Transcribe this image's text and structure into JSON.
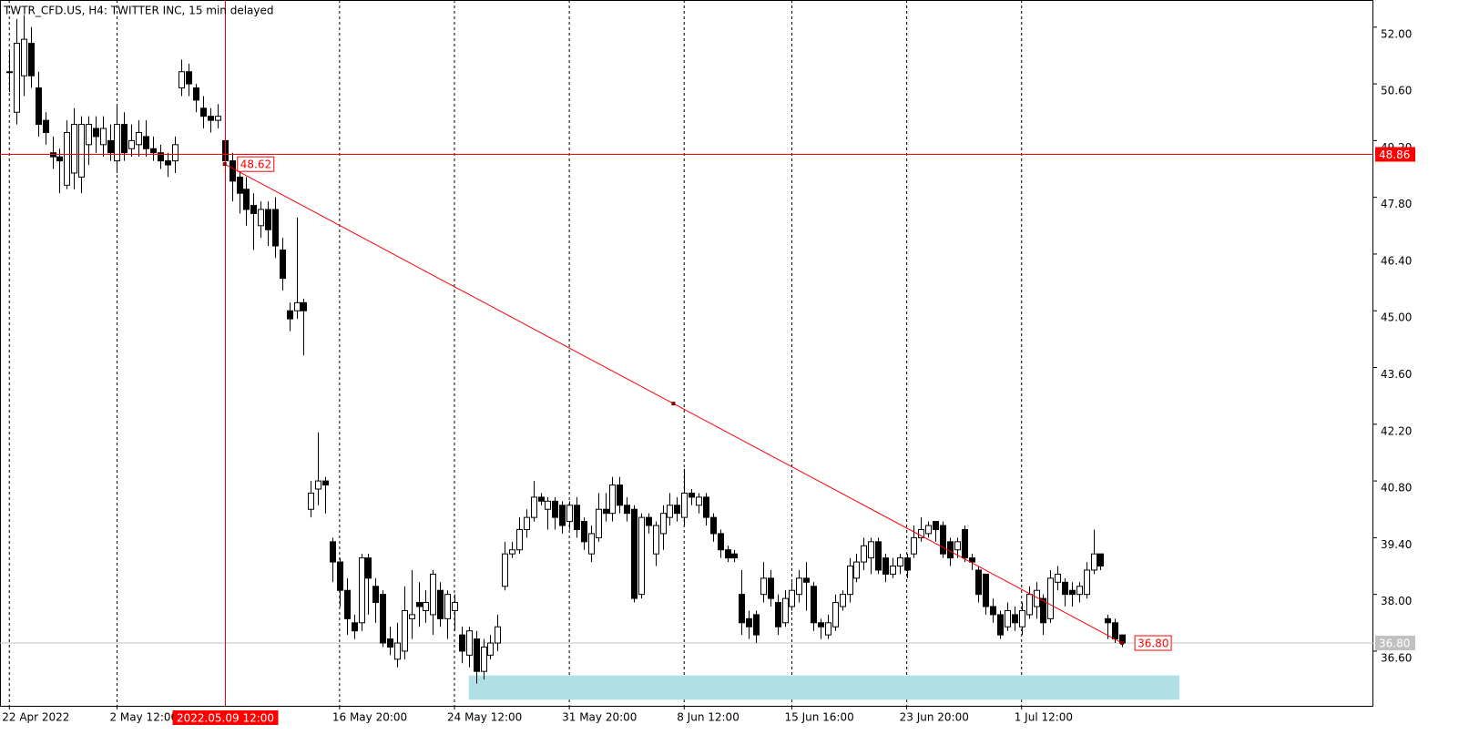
{
  "chart_data": {
    "type": "candlestick",
    "title": "TWTR_CFD.US, H4:  TWITTER INC, 15 min delayed",
    "up_color": "#ffffff",
    "down_color": "#000000",
    "outline_color": "#000000",
    "ylim": [
      35.25,
      52.67
    ],
    "yticks": [
      {
        "value": 36.6,
        "label": "36.60"
      },
      {
        "value": 38,
        "label": "38.00"
      },
      {
        "value": 39.4,
        "label": "39.40"
      },
      {
        "value": 40.8,
        "label": "40.80"
      },
      {
        "value": 42.2,
        "label": "42.20"
      },
      {
        "value": 43.6,
        "label": "43.60"
      },
      {
        "value": 45,
        "label": "45.00"
      },
      {
        "value": 46.4,
        "label": "46.40"
      },
      {
        "value": 47.8,
        "label": "47.80"
      },
      {
        "value": 49.2,
        "label": "49.20"
      },
      {
        "value": 50.6,
        "label": "50.60"
      },
      {
        "value": 52,
        "label": "52.00"
      }
    ],
    "xlim": [
      -1.3,
      190
    ],
    "xticks": [
      {
        "value": 0,
        "label": "22 Apr 2022"
      },
      {
        "value": 15,
        "label": "2 May 12:00"
      },
      {
        "value": 46,
        "label": "16 May 20:00"
      },
      {
        "value": 62,
        "label": "24 May 12:00"
      },
      {
        "value": 78,
        "label": "31 May 20:00"
      },
      {
        "value": 94,
        "label": "8 Jun 12:00"
      },
      {
        "value": 109,
        "label": "15 Jun 16:00"
      },
      {
        "value": 125,
        "label": "23 Jun 20:00"
      },
      {
        "value": 141,
        "label": "1 Jul 12:00"
      }
    ],
    "grid": true,
    "hline": {
      "value": 48.86,
      "label": "48.86",
      "color": "#ff0000"
    },
    "vline": {
      "x": 30,
      "label": "2022.05.09 12:00",
      "color": "#ff0000"
    },
    "trendline": {
      "x": [
        30,
        155
      ],
      "values": [
        48.62,
        36.8
      ],
      "value_labels": [
        "48.62",
        "36.80"
      ],
      "color": "#ff0000"
    },
    "last_price": {
      "value": 36.8,
      "label": "36.80",
      "color": "#c0c0c0"
    },
    "rectangle": {
      "x": [
        64,
        163
      ],
      "values": [
        36.0,
        35.4
      ],
      "color": "#b0e0e6"
    },
    "ohlc": [
      [
        50.9,
        51.4,
        50.4,
        50.9
      ],
      [
        49.9,
        52.2,
        49.6,
        51.6
      ],
      [
        50.8,
        52.3,
        50.3,
        51.7
      ],
      [
        51.6,
        52.0,
        50.5,
        50.8
      ],
      [
        50.5,
        50.9,
        49.3,
        49.6
      ],
      [
        49.7,
        49.9,
        49.1,
        49.4
      ],
      [
        48.9,
        49.3,
        48.5,
        48.8
      ],
      [
        48.8,
        49.0,
        47.9,
        48.7
      ],
      [
        48.1,
        49.7,
        48.0,
        49.4
      ],
      [
        48.4,
        50.0,
        48.0,
        49.6
      ],
      [
        48.3,
        49.8,
        47.9,
        49.6
      ],
      [
        49.1,
        49.8,
        48.6,
        49.6
      ],
      [
        49.5,
        49.8,
        48.9,
        49.3
      ],
      [
        49.1,
        49.8,
        48.8,
        49.5
      ],
      [
        49.2,
        49.6,
        48.7,
        48.9
      ],
      [
        48.7,
        50.1,
        48.4,
        49.6
      ],
      [
        49.6,
        49.9,
        48.7,
        48.9
      ],
      [
        49.0,
        49.6,
        48.8,
        49.2
      ],
      [
        49.1,
        49.7,
        48.8,
        49.4
      ],
      [
        49.3,
        49.7,
        48.8,
        49.0
      ],
      [
        49.0,
        49.3,
        48.7,
        48.9
      ],
      [
        48.9,
        49.1,
        48.5,
        48.7
      ],
      [
        48.7,
        48.9,
        48.3,
        48.6
      ],
      [
        48.7,
        49.3,
        48.4,
        49.1
      ],
      [
        50.5,
        51.2,
        50.3,
        50.9
      ],
      [
        50.9,
        51.1,
        50.3,
        50.6
      ],
      [
        50.5,
        50.6,
        49.9,
        50.2
      ],
      [
        50.0,
        50.3,
        49.5,
        49.8
      ],
      [
        49.8,
        50.0,
        49.4,
        49.7
      ],
      [
        49.7,
        50.1,
        49.5,
        49.8
      ],
      [
        49.2,
        49.3,
        48.3,
        48.7
      ],
      [
        48.7,
        48.9,
        47.7,
        48.2
      ],
      [
        48.3,
        48.5,
        47.4,
        47.9
      ],
      [
        48.0,
        48.3,
        47.1,
        47.5
      ],
      [
        47.6,
        47.9,
        46.5,
        47.4
      ],
      [
        47.1,
        47.7,
        46.8,
        47.5
      ],
      [
        47.5,
        47.7,
        46.6,
        47.0
      ],
      [
        47.5,
        47.8,
        46.3,
        46.6
      ],
      [
        46.5,
        46.8,
        45.5,
        45.8
      ],
      [
        45.0,
        45.2,
        44.5,
        44.8
      ],
      [
        45.0,
        47.3,
        44.8,
        45.2
      ],
      [
        45.2,
        45.3,
        43.9,
        45.0
      ],
      [
        40.1,
        40.8,
        39.9,
        40.5
      ],
      [
        40.6,
        42.0,
        40.2,
        40.8
      ],
      [
        40.8,
        40.9,
        40.0,
        40.7
      ],
      [
        39.3,
        39.4,
        38.3,
        38.8
      ],
      [
        38.8,
        38.9,
        37.7,
        38.1
      ],
      [
        38.1,
        38.4,
        37.0,
        37.4
      ],
      [
        37.3,
        37.5,
        36.9,
        37.1
      ],
      [
        37.3,
        39.0,
        37.1,
        38.9
      ],
      [
        38.9,
        39.0,
        37.5,
        38.4
      ],
      [
        38.2,
        38.4,
        37.3,
        37.8
      ],
      [
        38.0,
        38.1,
        36.7,
        36.8
      ],
      [
        36.9,
        37.2,
        36.5,
        36.7
      ],
      [
        36.4,
        37.3,
        36.2,
        36.8
      ],
      [
        36.6,
        38.2,
        36.4,
        37.6
      ],
      [
        37.4,
        38.6,
        36.9,
        37.5
      ],
      [
        37.8,
        38.3,
        37.2,
        37.7
      ],
      [
        37.6,
        38.1,
        37.3,
        37.8
      ],
      [
        37.5,
        38.6,
        37.0,
        38.5
      ],
      [
        38.1,
        38.3,
        37.2,
        37.4
      ],
      [
        37.4,
        38.1,
        36.9,
        38.0
      ],
      [
        37.6,
        38.0,
        37.1,
        37.8
      ],
      [
        37.0,
        37.2,
        36.3,
        36.6
      ],
      [
        36.5,
        37.2,
        36.2,
        37.1
      ],
      [
        36.9,
        37.1,
        35.8,
        36.1
      ],
      [
        36.1,
        36.9,
        35.9,
        36.7
      ],
      [
        36.5,
        37.0,
        36.4,
        36.8
      ],
      [
        36.8,
        37.5,
        36.6,
        37.2
      ],
      [
        38.2,
        39.3,
        38.1,
        39.0
      ],
      [
        39.0,
        39.3,
        38.9,
        39.1
      ],
      [
        39.1,
        39.9,
        39.0,
        39.6
      ],
      [
        39.6,
        40.1,
        39.4,
        39.9
      ],
      [
        39.9,
        40.8,
        39.8,
        40.4
      ],
      [
        40.4,
        40.5,
        40.2,
        40.3
      ],
      [
        40.1,
        40.4,
        39.6,
        40.3
      ],
      [
        40.3,
        40.4,
        39.6,
        39.9
      ],
      [
        40.2,
        40.3,
        39.5,
        39.7
      ],
      [
        39.8,
        40.3,
        39.6,
        40.2
      ],
      [
        40.2,
        40.4,
        39.4,
        39.6
      ],
      [
        39.8,
        39.9,
        39.1,
        39.3
      ],
      [
        39.0,
        39.7,
        38.8,
        39.5
      ],
      [
        39.4,
        40.5,
        39.3,
        40.1
      ],
      [
        40.1,
        40.5,
        39.8,
        40.0
      ],
      [
        40.0,
        40.9,
        39.8,
        40.7
      ],
      [
        40.7,
        40.9,
        40.0,
        40.2
      ],
      [
        40.2,
        40.4,
        39.8,
        40.0
      ],
      [
        40.1,
        40.2,
        37.8,
        37.9
      ],
      [
        38.0,
        40.0,
        37.9,
        39.9
      ],
      [
        39.9,
        40.0,
        39.5,
        39.7
      ],
      [
        39.0,
        39.8,
        38.7,
        39.7
      ],
      [
        39.5,
        40.2,
        39.1,
        40.0
      ],
      [
        39.9,
        40.5,
        39.7,
        40.2
      ],
      [
        40.2,
        40.4,
        39.8,
        40.0
      ],
      [
        39.9,
        41.1,
        39.7,
        40.5
      ],
      [
        40.5,
        40.6,
        40.2,
        40.4
      ],
      [
        40.2,
        40.5,
        40.0,
        40.4
      ],
      [
        40.4,
        40.5,
        39.7,
        39.9
      ],
      [
        39.9,
        40.0,
        39.3,
        39.5
      ],
      [
        39.5,
        39.6,
        38.9,
        39.1
      ],
      [
        39.1,
        39.2,
        38.8,
        38.9
      ],
      [
        39.0,
        39.1,
        38.8,
        38.9
      ],
      [
        38.0,
        38.6,
        37.0,
        37.3
      ],
      [
        37.4,
        37.6,
        36.9,
        37.2
      ],
      [
        37.5,
        37.6,
        36.8,
        37.0
      ],
      [
        38.0,
        38.8,
        37.8,
        38.4
      ],
      [
        38.4,
        38.6,
        37.7,
        37.9
      ],
      [
        37.8,
        38.0,
        37.0,
        37.2
      ],
      [
        37.3,
        38.1,
        37.2,
        37.9
      ],
      [
        37.7,
        38.3,
        37.6,
        38.1
      ],
      [
        38.0,
        38.6,
        37.8,
        38.4
      ],
      [
        38.4,
        38.8,
        37.6,
        38.3
      ],
      [
        38.2,
        38.3,
        37.1,
        37.3
      ],
      [
        37.3,
        37.4,
        36.9,
        37.2
      ],
      [
        37.0,
        37.5,
        36.9,
        37.3
      ],
      [
        37.2,
        38.0,
        37.1,
        37.8
      ],
      [
        37.7,
        38.1,
        37.6,
        38.0
      ],
      [
        38.0,
        38.9,
        37.8,
        38.7
      ],
      [
        38.4,
        39.0,
        38.3,
        38.8
      ],
      [
        38.8,
        39.4,
        38.6,
        39.2
      ],
      [
        38.9,
        39.4,
        38.5,
        39.3
      ],
      [
        39.3,
        39.4,
        38.5,
        38.6
      ],
      [
        38.9,
        39.0,
        38.3,
        38.5
      ],
      [
        38.5,
        38.9,
        38.4,
        38.7
      ],
      [
        38.7,
        39.0,
        38.5,
        38.9
      ],
      [
        38.9,
        39.0,
        38.4,
        38.6
      ],
      [
        39.0,
        39.7,
        38.9,
        39.4
      ],
      [
        39.4,
        39.9,
        39.3,
        39.6
      ],
      [
        39.5,
        39.8,
        39.4,
        39.7
      ],
      [
        39.8,
        39.8,
        39.3,
        39.6
      ],
      [
        39.7,
        39.8,
        38.9,
        39.0
      ],
      [
        39.3,
        39.4,
        38.7,
        38.9
      ],
      [
        39.1,
        39.4,
        38.9,
        39.3
      ],
      [
        39.6,
        39.7,
        38.8,
        38.9
      ],
      [
        38.9,
        39.0,
        38.6,
        38.8
      ],
      [
        38.6,
        38.7,
        37.8,
        38.0
      ],
      [
        38.5,
        38.5,
        37.5,
        37.7
      ],
      [
        37.7,
        37.9,
        37.3,
        37.5
      ],
      [
        37.5,
        37.6,
        36.9,
        37.0
      ],
      [
        37.2,
        37.8,
        37.1,
        37.6
      ],
      [
        37.5,
        37.7,
        37.1,
        37.3
      ],
      [
        37.2,
        37.8,
        37.0,
        37.6
      ],
      [
        37.5,
        38.2,
        37.4,
        38.0
      ],
      [
        37.7,
        38.3,
        37.4,
        38.1
      ],
      [
        37.9,
        38.0,
        37.0,
        37.3
      ],
      [
        37.4,
        38.6,
        37.3,
        38.4
      ],
      [
        38.3,
        38.7,
        38.1,
        38.5
      ],
      [
        38.3,
        38.4,
        37.7,
        38.0
      ],
      [
        38.1,
        38.3,
        37.7,
        38.0
      ],
      [
        38.0,
        38.3,
        37.8,
        38.2
      ],
      [
        38.0,
        38.8,
        37.9,
        38.6
      ],
      [
        38.6,
        39.6,
        38.5,
        39.0
      ],
      [
        39.0,
        39.0,
        38.6,
        38.7
      ],
      [
        37.4,
        37.5,
        36.9,
        37.3
      ],
      [
        37.3,
        37.4,
        36.8,
        36.9
      ],
      [
        37.0,
        37.0,
        36.7,
        36.8
      ]
    ]
  }
}
